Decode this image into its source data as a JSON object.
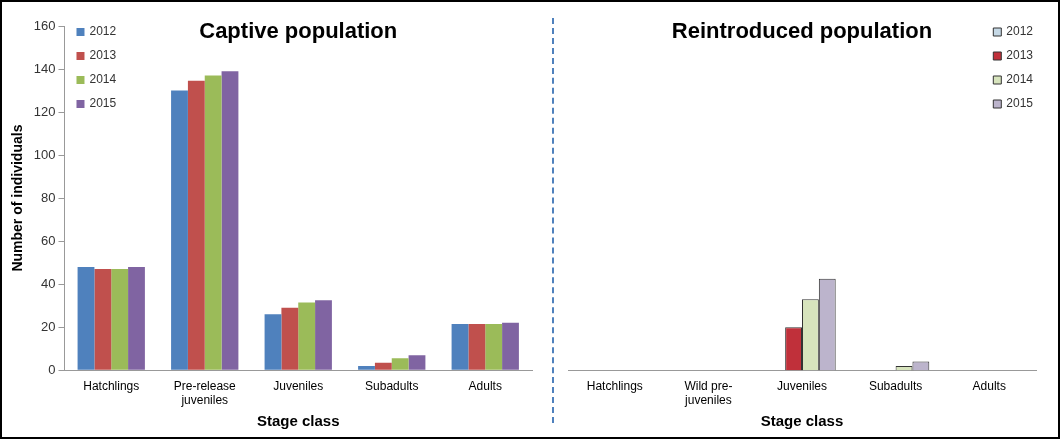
{
  "chart_data": [
    {
      "type": "bar",
      "title": "Captive population",
      "xlabel": "Stage class",
      "ylabel": "Number of individuals",
      "categories": [
        "Hatchlings",
        "Pre-release juveniles",
        "Juveniles",
        "Subadults",
        "Adults"
      ],
      "series": [
        {
          "name": "2012",
          "color": "#4f81bd",
          "values": [
            48,
            130,
            26,
            2,
            21.5
          ]
        },
        {
          "name": "2013",
          "color": "#c0504d",
          "values": [
            47,
            134.5,
            29,
            3.5,
            21.5
          ]
        },
        {
          "name": "2014",
          "color": "#9bbb59",
          "values": [
            47,
            137,
            31.5,
            5.5,
            21.5
          ]
        },
        {
          "name": "2015",
          "color": "#8064a2",
          "values": [
            48,
            139,
            32.5,
            7,
            22
          ]
        }
      ],
      "ylim": [
        0,
        160
      ],
      "yticks": [
        0,
        20,
        40,
        60,
        80,
        100,
        120,
        140,
        160
      ],
      "legend": "top left"
    },
    {
      "type": "bar",
      "title": "Reintroduced population",
      "xlabel": "Stage class",
      "categories": [
        "Hatchlings",
        "Wild pre-juveniles",
        "Juveniles",
        "Subadults",
        "Adults"
      ],
      "series": [
        {
          "name": "2012",
          "color": "#c6d9e6",
          "values": [
            0,
            0,
            0,
            0,
            0
          ]
        },
        {
          "name": "2013",
          "color": "#c0303a",
          "values": [
            0,
            0,
            20,
            0,
            0
          ]
        },
        {
          "name": "2014",
          "color": "#d7e4bd",
          "values": [
            0,
            0,
            33,
            2,
            0
          ]
        },
        {
          "name": "2015",
          "color": "#bcb4cc",
          "values": [
            0,
            0,
            42.5,
            4,
            0
          ]
        }
      ],
      "ylim": [
        0,
        160
      ],
      "yticks": [
        0,
        20,
        40,
        60,
        80,
        100,
        120,
        140,
        160
      ],
      "legend": "top right",
      "tick_labels": "x"
    }
  ]
}
